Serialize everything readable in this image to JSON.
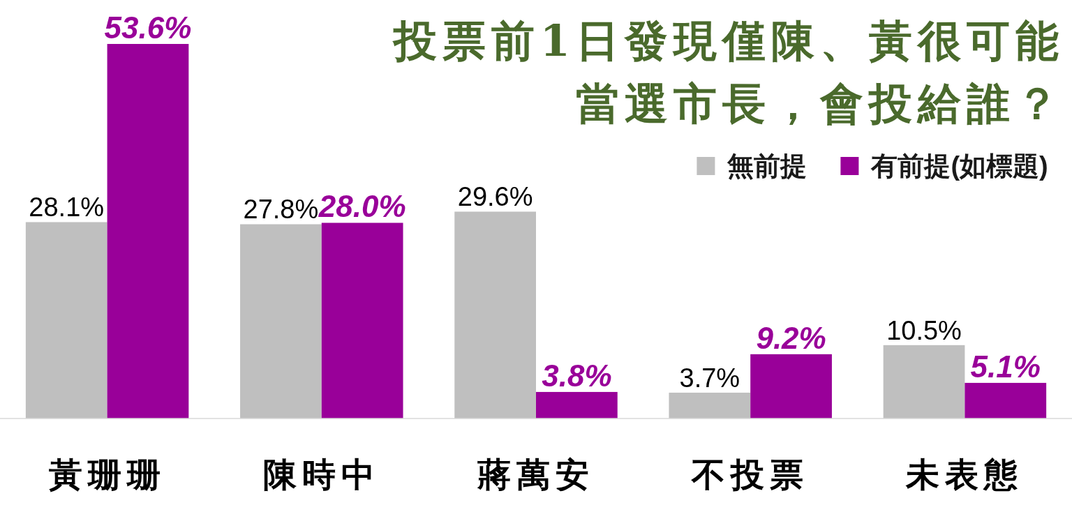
{
  "chart_data": {
    "type": "bar",
    "title": "投票前1日發現僅陳、黃很可能當選市長，會投給誰？",
    "categories": [
      "黃珊珊",
      "陳時中",
      "蔣萬安",
      "不投票",
      "未表態"
    ],
    "series": [
      {
        "name": "無前提",
        "color": "#bfbfbf",
        "values": [
          28.1,
          27.8,
          29.6,
          3.7,
          10.5
        ],
        "value_labels": [
          "28.1%",
          "27.8%",
          "29.6%",
          "3.7%",
          "10.5%"
        ]
      },
      {
        "name": "有前提(如標題)",
        "color": "#990099",
        "values": [
          53.6,
          28.0,
          3.8,
          9.2,
          5.1
        ],
        "value_labels": [
          "53.6%",
          "28.0%",
          "3.8%",
          "9.2%",
          "5.1%"
        ]
      }
    ],
    "legend": "top right",
    "tick_labels": "x"
  }
}
